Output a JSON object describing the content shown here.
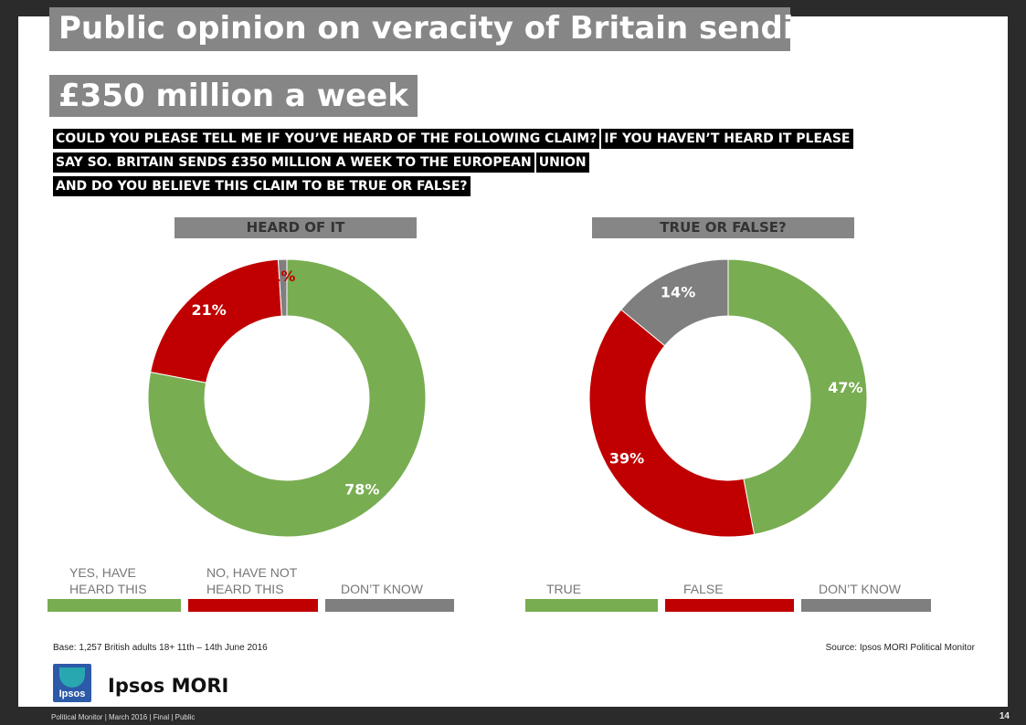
{
  "title_line1": "Public opinion on veracity of Britain sending",
  "title_line2": "£350 million a week",
  "question": {
    "line1a": "COULD YOU PLEASE TELL ME IF YOU’VE HEARD OF THE FOLLOWING CLAIM?",
    "line1b": "IF YOU HAVEN’T HEARD IT PLEASE",
    "line2a": "SAY SO. BRITAIN SENDS £350 MILLION A WEEK TO THE EUROPEAN",
    "line2b": "UNION",
    "line3": "AND DO YOU BELIEVE THIS CLAIM TO BE TRUE OR FALSE?"
  },
  "colors": {
    "green": "#78ad51",
    "red": "#c00000",
    "grey": "#7f7f7f"
  },
  "chart_data": [
    {
      "type": "pie",
      "title": "HEARD OF IT",
      "categories": [
        "YES, HAVE HEARD THIS",
        "NO, HAVE NOT HEARD THIS",
        "DON’T KNOW"
      ],
      "values": [
        78,
        21,
        1
      ],
      "labels": [
        "78%",
        "21%",
        "1%"
      ],
      "legend": {
        "yes_line1": "YES, HAVE",
        "yes_line2": "HEARD THIS",
        "no_line1": "NO, HAVE NOT",
        "no_line2": "HEARD THIS",
        "dk": "DON’T KNOW"
      }
    },
    {
      "type": "pie",
      "title": "TRUE OR FALSE?",
      "categories": [
        "TRUE",
        "FALSE",
        "DON’T KNOW"
      ],
      "values": [
        47,
        39,
        14
      ],
      "labels": [
        "47%",
        "39%",
        "14%"
      ],
      "legend": {
        "true": "TRUE",
        "false": "FALSE",
        "dk": "DON’T KNOW"
      }
    }
  ],
  "base_note": "Base: 1,257 British adults 18+ 11th – 14th June 2016",
  "source_note": "Source: Ipsos MORI Political Monitor",
  "logo_text": "Ipsos",
  "brand": "Ipsos MORI",
  "footer_left": "Political Monitor | March 2016 | Final | Public",
  "page_number": "14"
}
